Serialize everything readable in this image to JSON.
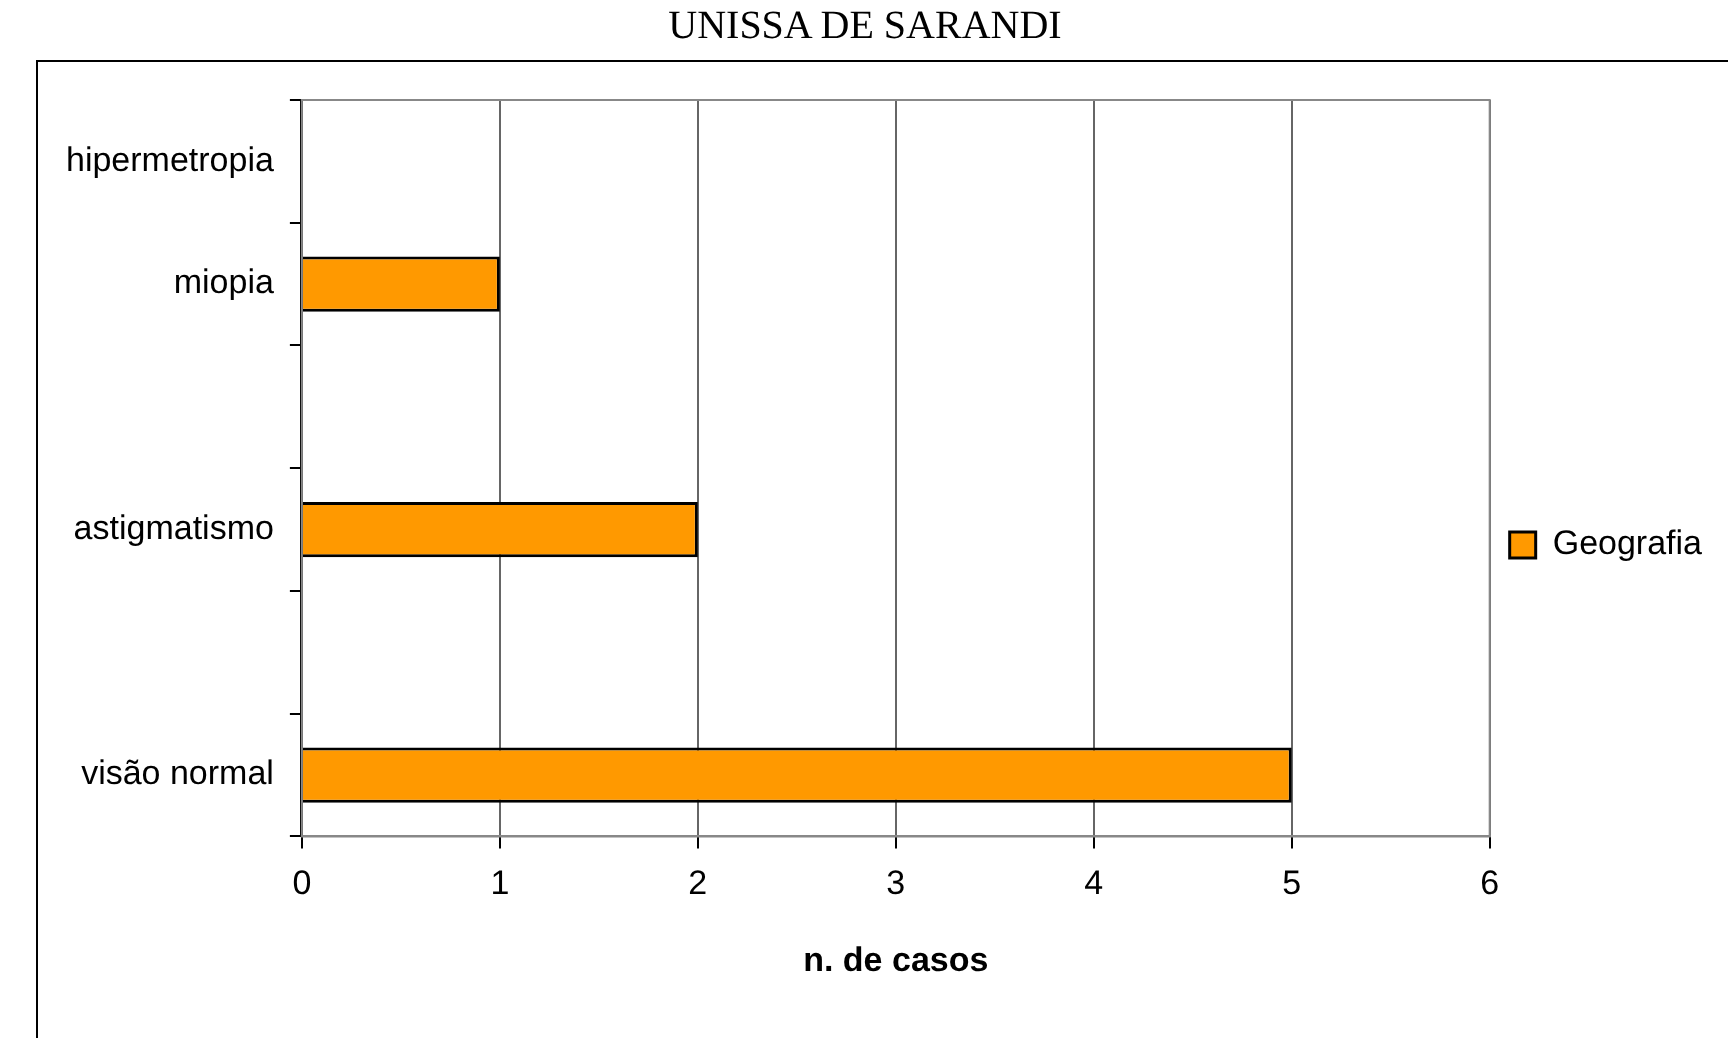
{
  "chart_data": {
    "type": "bar",
    "orientation": "horizontal",
    "title": "UNISSA DE SARANDI",
    "categories": [
      "hipermetropia",
      "miopia",
      null,
      "astigmatismo",
      null,
      "visão normal"
    ],
    "series": [
      {
        "name": "Geografia",
        "color": "#ff9900",
        "values": [
          0,
          1,
          null,
          2,
          null,
          5
        ]
      }
    ],
    "xlabel": "n. de casos",
    "xlim": [
      0,
      6
    ],
    "xticks": [
      0,
      1,
      2,
      3,
      4,
      5,
      6
    ],
    "grid": "x",
    "legend": "right"
  }
}
